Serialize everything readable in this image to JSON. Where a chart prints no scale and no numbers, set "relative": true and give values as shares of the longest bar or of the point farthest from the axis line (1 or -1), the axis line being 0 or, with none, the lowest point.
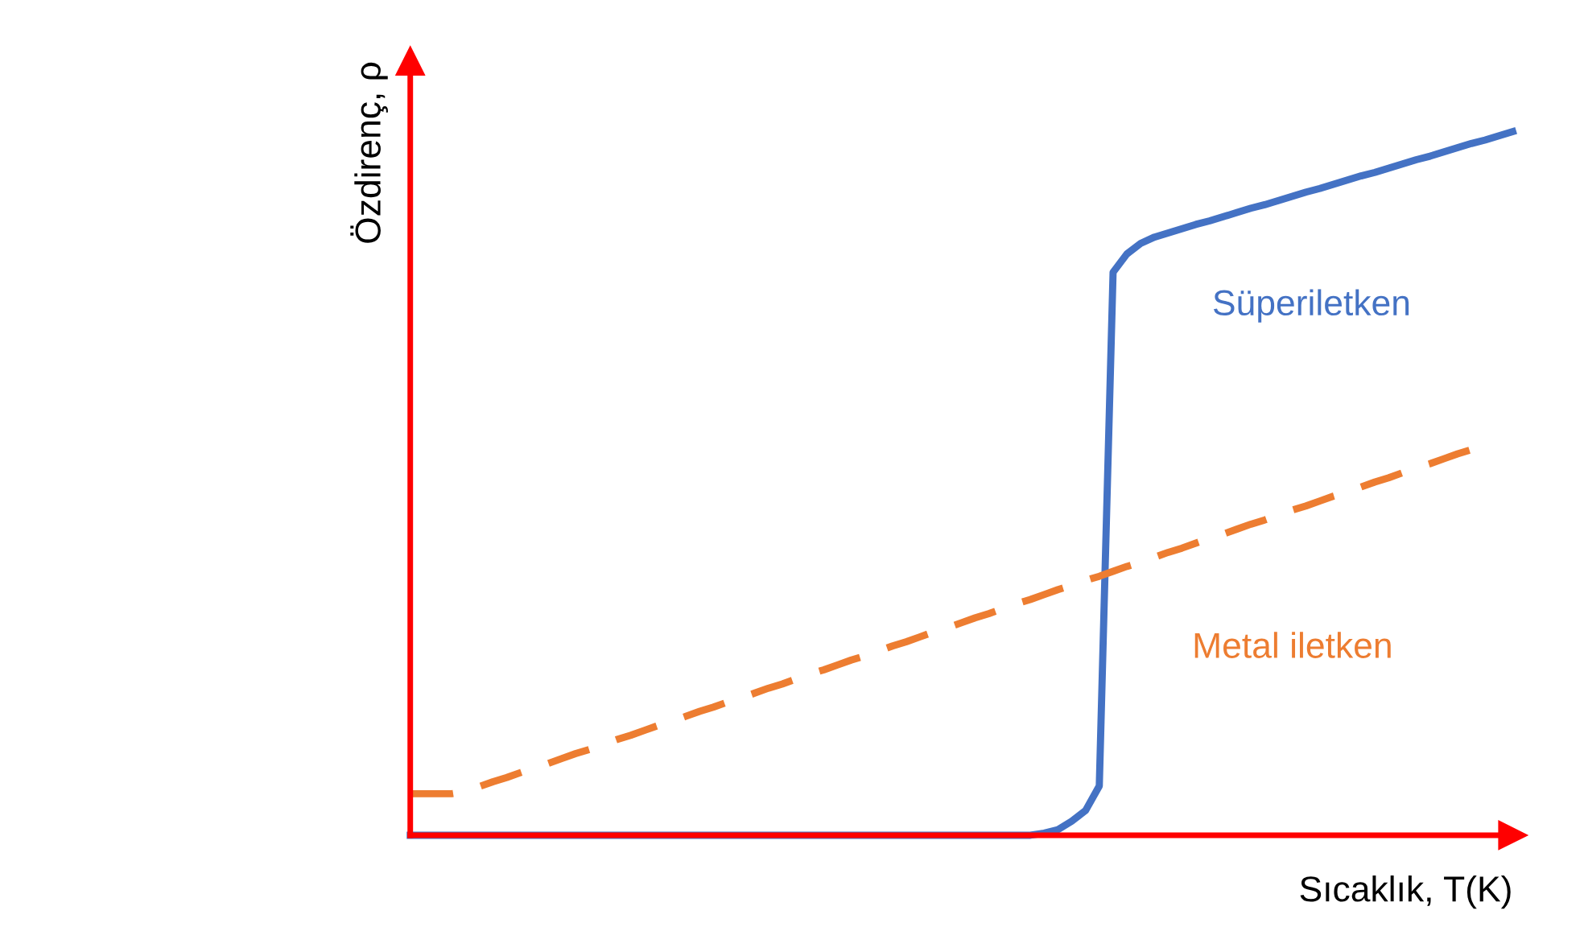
{
  "chart_data": {
    "type": "line",
    "relative": true,
    "xlabel": "Sıcaklık, T(K)",
    "ylabel": "Özdirenç, ρ",
    "legend": false,
    "marker": "none",
    "categories": [
      null,
      null,
      null,
      null,
      null,
      null,
      null,
      null,
      null,
      null,
      null,
      null,
      null,
      null,
      null,
      null,
      null,
      null,
      null,
      null,
      null,
      null,
      null,
      null,
      null,
      null,
      null,
      null,
      null,
      null,
      null,
      null,
      null,
      null,
      null,
      null,
      null,
      null,
      null,
      null,
      null,
      null,
      null,
      null,
      null,
      null,
      null,
      null,
      null,
      null,
      null,
      null,
      null,
      null,
      null,
      null,
      null,
      null,
      null,
      null,
      null,
      null,
      null,
      null,
      null,
      null,
      null,
      null,
      null,
      null,
      null,
      null,
      null,
      null,
      null,
      null,
      null,
      null,
      null,
      null,
      null
    ],
    "series": [
      {
        "name": "Süperiletken",
        "color": "#4472c4",
        "line_style": "solid",
        "values": [
          0,
          0,
          0,
          0,
          0,
          0,
          0,
          0,
          0,
          0,
          0,
          0,
          0,
          0,
          0,
          0,
          0,
          0,
          0,
          0,
          0,
          0,
          0,
          0,
          0,
          0,
          0,
          0,
          0,
          0,
          0,
          0,
          0,
          0,
          0,
          0,
          0,
          0,
          0,
          0,
          0,
          0,
          0,
          0,
          0,
          0,
          0.003,
          0.008,
          0.02,
          0.035,
          0.07,
          0.8,
          0.826,
          0.841,
          0.85,
          0.856,
          0.862,
          0.868,
          0.873,
          0.879,
          0.885,
          0.891,
          0.896,
          0.902,
          0.908,
          0.914,
          0.919,
          0.925,
          0.931,
          0.937,
          0.942,
          0.948,
          0.954,
          0.96,
          0.965,
          0.971,
          0.977,
          0.983,
          0.988,
          0.994,
          1
        ]
      },
      {
        "name": "Metal iletken",
        "color": "#ed7d31",
        "line_style": "dashed",
        "values": [
          0.059,
          0.059,
          0.059,
          0.059,
          0.062,
          0.069,
          0.076,
          0.082,
          0.089,
          0.096,
          0.102,
          0.109,
          0.116,
          0.122,
          0.129,
          0.136,
          0.142,
          0.149,
          0.156,
          0.162,
          0.169,
          0.176,
          0.182,
          0.189,
          0.195,
          0.202,
          0.209,
          0.215,
          0.222,
          0.229,
          0.235,
          0.242,
          0.249,
          0.255,
          0.262,
          0.269,
          0.275,
          0.282,
          0.289,
          0.295,
          0.302,
          0.309,
          0.315,
          0.322,
          0.329,
          0.335,
          0.342,
          0.349,
          0.355,
          0.362,
          0.368,
          0.375,
          0.382,
          0.388,
          0.395,
          0.402,
          0.408,
          0.415,
          0.422,
          0.428,
          0.435,
          0.442,
          0.448,
          0.455,
          0.462,
          0.468,
          0.475,
          0.482,
          0.488,
          0.495,
          0.502,
          0.508,
          0.515,
          0.522,
          0.528,
          0.535,
          0.542,
          0.548,
          null,
          null,
          null
        ]
      }
    ]
  }
}
